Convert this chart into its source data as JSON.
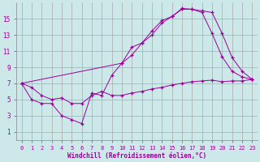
{
  "xlabel": "Windchill (Refroidissement éolien,°C)",
  "bg_color": "#cce8e8",
  "line_color": "#990099",
  "grid_color": "#aaaaaa",
  "xlim": [
    -0.5,
    23.5
  ],
  "ylim": [
    0,
    17
  ],
  "xticks": [
    0,
    1,
    2,
    3,
    4,
    5,
    6,
    7,
    8,
    9,
    10,
    11,
    12,
    13,
    14,
    15,
    16,
    17,
    18,
    19,
    20,
    21,
    22,
    23
  ],
  "yticks": [
    1,
    3,
    5,
    7,
    9,
    11,
    13,
    15
  ],
  "line1_x": [
    0,
    1,
    2,
    3,
    4,
    5,
    6,
    7,
    8,
    9,
    10,
    11,
    12,
    13,
    14,
    15,
    16,
    17,
    18,
    19,
    20,
    21,
    22,
    23
  ],
  "line1_y": [
    7.0,
    6.5,
    5.5,
    5.0,
    5.2,
    4.5,
    4.5,
    5.5,
    6.0,
    5.5,
    5.5,
    5.8,
    6.0,
    6.3,
    6.5,
    6.8,
    7.0,
    7.2,
    7.3,
    7.4,
    7.2,
    7.3,
    7.3,
    7.5
  ],
  "line2_x": [
    0,
    1,
    2,
    3,
    4,
    5,
    6,
    7,
    8,
    9,
    10,
    11,
    12,
    13,
    14,
    15,
    16,
    17,
    18,
    19,
    20,
    21,
    22,
    23
  ],
  "line2_y": [
    7.0,
    5.0,
    4.5,
    4.5,
    3.0,
    2.5,
    2.0,
    5.8,
    5.5,
    8.0,
    9.5,
    10.5,
    12.0,
    13.5,
    14.8,
    15.3,
    16.3,
    16.2,
    15.8,
    13.2,
    10.3,
    8.5,
    7.8,
    7.5
  ],
  "line3_x": [
    0,
    10,
    11,
    12,
    13,
    14,
    15,
    16,
    17,
    18,
    19,
    20,
    21,
    22,
    23
  ],
  "line3_y": [
    7.0,
    9.5,
    11.5,
    12.0,
    13.0,
    14.5,
    15.3,
    16.2,
    16.2,
    16.0,
    15.8,
    13.2,
    10.2,
    8.5,
    7.5
  ]
}
